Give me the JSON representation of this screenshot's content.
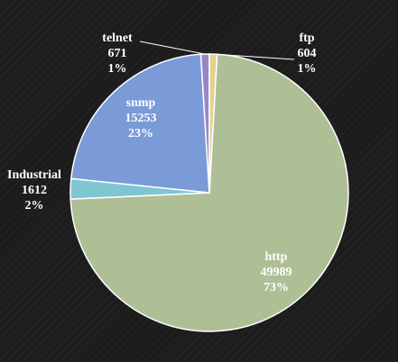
{
  "chart_data": {
    "type": "pie",
    "slices": [
      {
        "name": "http",
        "value": 49989,
        "percent": "73%",
        "color": "#aebf96",
        "text_color": "#ffffff"
      },
      {
        "name": "Industrial",
        "value": 1612,
        "percent": "2%",
        "color": "#7fc6d2",
        "text_color": "#ffffff"
      },
      {
        "name": "snmp",
        "value": 15253,
        "percent": "23%",
        "color": "#7a9bd8",
        "text_color": "#ffffff"
      },
      {
        "name": "telnet",
        "value": 671,
        "percent": "1%",
        "color": "#9787c9",
        "text_color": "#ffffff"
      },
      {
        "name": "ftp",
        "value": 604,
        "percent": "1%",
        "color": "#e4d28c",
        "text_color": "#ffffff"
      }
    ],
    "title": "",
    "legend": "none"
  }
}
